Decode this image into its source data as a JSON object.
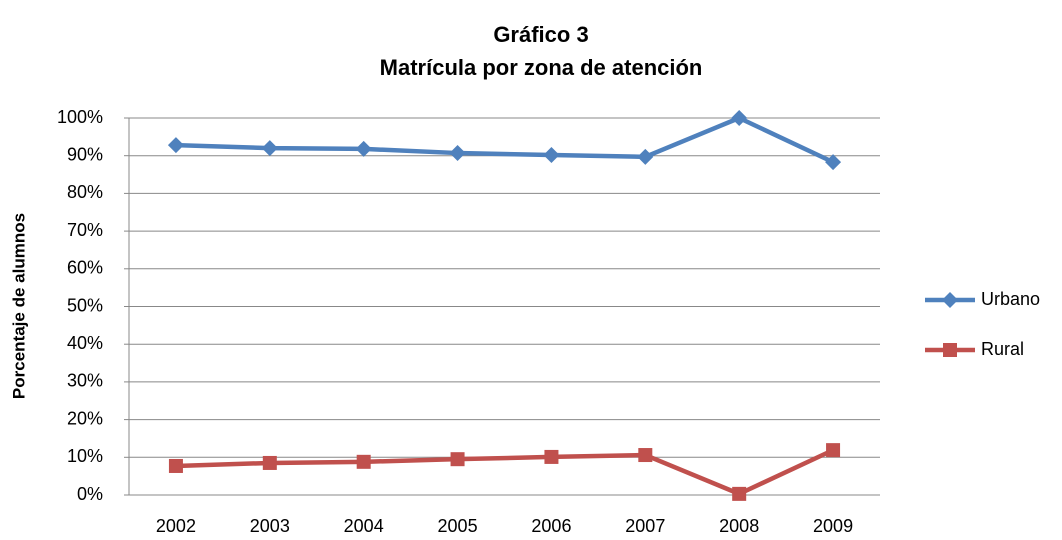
{
  "chart_data": {
    "type": "line",
    "title": [
      "Gráfico 3",
      "Matrícula por zona de atención"
    ],
    "y_label": "Porcentaje de alumnos",
    "categories": [
      "2002",
      "2003",
      "2004",
      "2005",
      "2006",
      "2007",
      "2008",
      "2009"
    ],
    "series": [
      {
        "name": "Urbano",
        "color": "#4f81bd",
        "marker": "diamond",
        "values": [
          92.8,
          92.0,
          91.8,
          90.7,
          90.2,
          89.7,
          100,
          88.3
        ]
      },
      {
        "name": "Rural",
        "color": "#c0504d",
        "marker": "square",
        "values": [
          7.7,
          8.5,
          8.8,
          9.5,
          10.1,
          10.6,
          0.3,
          11.9
        ]
      }
    ],
    "ylim": [
      0,
      100
    ],
    "yticks": [
      {
        "value": 0,
        "label": "0%"
      },
      {
        "value": 10,
        "label": "10%"
      },
      {
        "value": 20,
        "label": "20%"
      },
      {
        "value": 30,
        "label": "30%"
      },
      {
        "value": 40,
        "label": "40%"
      },
      {
        "value": 50,
        "label": "50%"
      },
      {
        "value": 60,
        "label": "60%"
      },
      {
        "value": 70,
        "label": "70%"
      },
      {
        "value": 80,
        "label": "80%"
      },
      {
        "value": 90,
        "label": "90%"
      },
      {
        "value": 100,
        "label": "100%"
      }
    ],
    "grid": true,
    "legend": "right"
  }
}
